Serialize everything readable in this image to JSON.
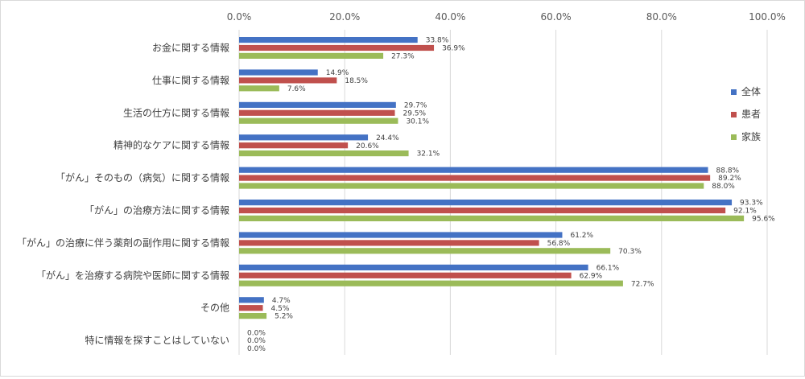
{
  "chart_data": {
    "type": "bar",
    "orientation": "horizontal",
    "categories": [
      "お金に関する情報",
      "仕事に関する情報",
      "生活の仕方に関する情報",
      "精神的なケアに関する情報",
      "「がん」そのもの（病気）に関する情報",
      "「がん」の治療方法に関する情報",
      "「がん」の治療に伴う薬剤の副作用に関する情報",
      "「がん」を治療する病院や医師に関する情報",
      "その他",
      "特に情報を探すことはしていない"
    ],
    "series": [
      {
        "name": "全体",
        "color": "#4472C4",
        "values": [
          33.8,
          14.9,
          29.7,
          24.4,
          88.8,
          93.3,
          61.2,
          66.1,
          4.7,
          0.0
        ]
      },
      {
        "name": "患者",
        "color": "#C0504D",
        "values": [
          36.9,
          18.5,
          29.5,
          20.6,
          89.2,
          92.1,
          56.8,
          62.9,
          4.5,
          0.0
        ]
      },
      {
        "name": "家族",
        "color": "#9BBB59",
        "values": [
          27.3,
          7.6,
          30.1,
          32.1,
          88.0,
          95.6,
          70.3,
          72.7,
          5.2,
          0.0
        ]
      }
    ],
    "xlim": [
      0,
      100
    ],
    "xticks": [
      "0.0%",
      "20.0%",
      "40.0%",
      "60.0%",
      "80.0%",
      "100.0%"
    ],
    "value_format": "percent_1dp",
    "axis_position": "top",
    "grid": true,
    "legend_position": "right"
  }
}
